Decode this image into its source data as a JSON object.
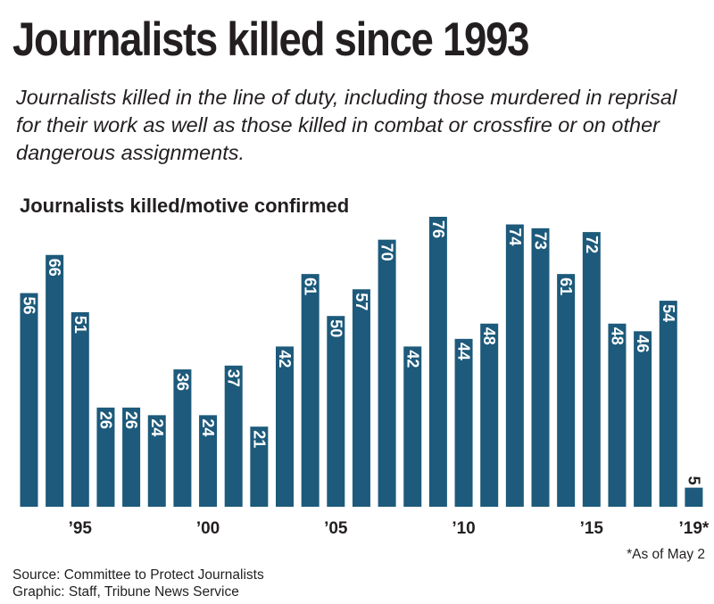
{
  "header": {
    "title": "Journalists killed since 1993",
    "subtitle": "Journalists killed in the line of duty, including those murdered in reprisal for their work as well as those killed in combat or crossfire or on other dangerous assignments."
  },
  "chart_data": {
    "type": "bar",
    "title": "Journalists killed/motive confirmed",
    "categories": [
      "1993",
      "1994",
      "1995",
      "1996",
      "1997",
      "1998",
      "1999",
      "2000",
      "2001",
      "2002",
      "2003",
      "2004",
      "2005",
      "2006",
      "2007",
      "2008",
      "2009",
      "2010",
      "2011",
      "2012",
      "2013",
      "2014",
      "2015",
      "2016",
      "2017",
      "2018",
      "2019"
    ],
    "values": [
      56,
      66,
      51,
      26,
      26,
      24,
      36,
      24,
      37,
      21,
      42,
      61,
      50,
      57,
      70,
      42,
      76,
      44,
      48,
      74,
      73,
      61,
      72,
      48,
      46,
      54,
      5
    ],
    "x_tick_labels": [
      {
        "category": "1995",
        "label": "’95"
      },
      {
        "category": "2000",
        "label": "’00"
      },
      {
        "category": "2005",
        "label": "’05"
      },
      {
        "category": "2010",
        "label": "’10"
      },
      {
        "category": "2015",
        "label": "’15"
      },
      {
        "category": "2019",
        "label": "’19*"
      }
    ],
    "ylim": [
      0,
      76
    ],
    "grid": false,
    "data_labels": "inside-bar-rotated",
    "bar_color": "#1d5a7b",
    "label_color": "#ffffff",
    "small_bar_label_color": "#231f20"
  },
  "notes": {
    "footnote": "*As of May 2",
    "source": "Source: Committee to Protect Journalists",
    "credit": "Graphic: Staff, Tribune News Service"
  }
}
